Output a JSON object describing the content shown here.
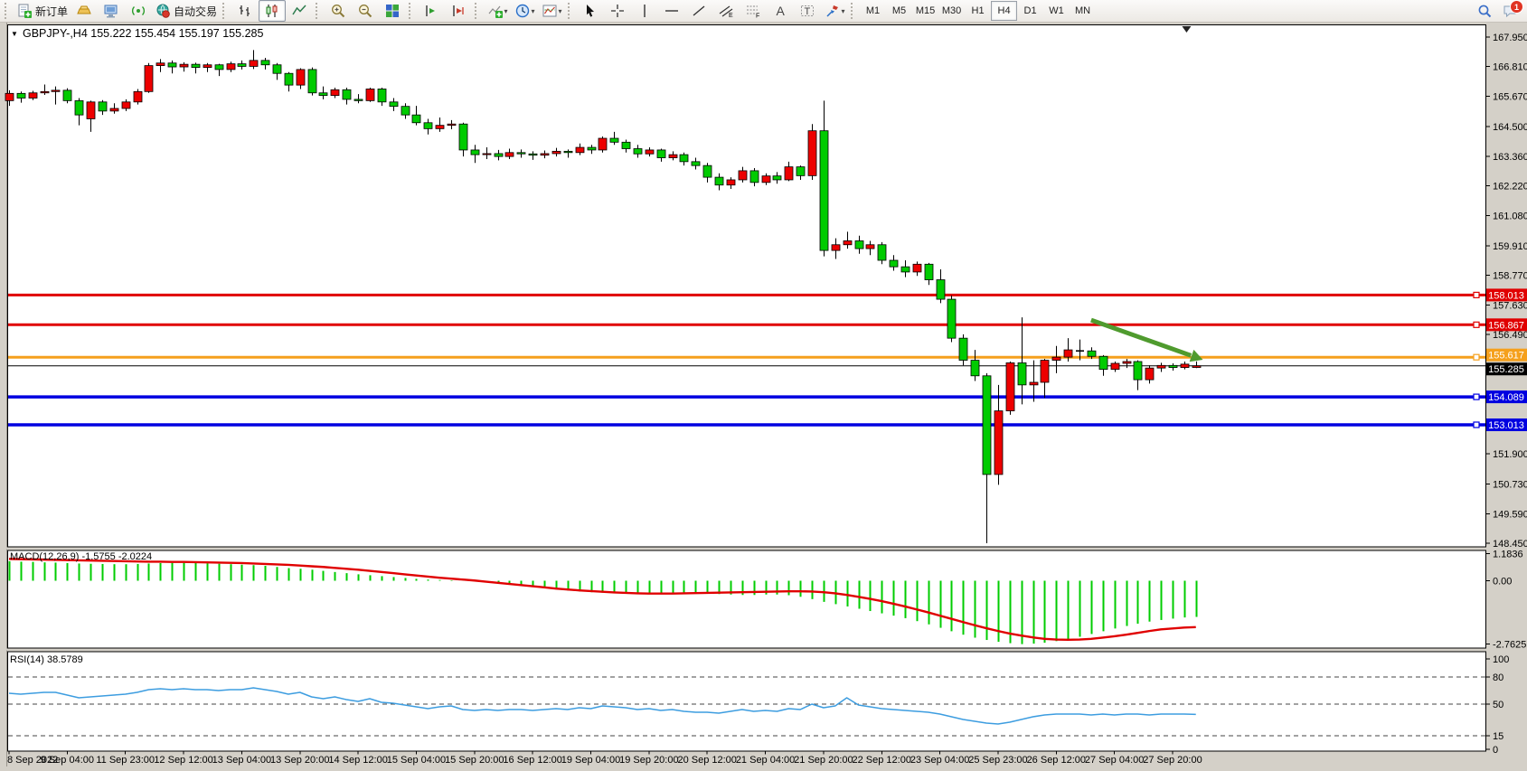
{
  "app": {
    "name": "MetaTrader terminal"
  },
  "toolbar": {
    "groups": [
      {
        "name": "trade",
        "items": [
          {
            "name": "new-order-button",
            "icon": "new-order-icon",
            "label": "新订单"
          },
          {
            "name": "deposit-button",
            "icon": "deposit-icon"
          },
          {
            "name": "market-watch-button",
            "icon": "market-watch-icon"
          },
          {
            "name": "signals-button",
            "icon": "signal-icon"
          },
          {
            "name": "autotrade-button",
            "icon": "autotrade-icon",
            "label": "自动交易"
          }
        ]
      },
      {
        "name": "chart-type",
        "items": [
          {
            "name": "bar-chart-button",
            "icon": "bar-chart-icon"
          },
          {
            "name": "candlestick-chart-button",
            "icon": "candlestick-chart-icon",
            "selected": true
          },
          {
            "name": "line-chart-button",
            "icon": "line-chart-icon"
          }
        ]
      },
      {
        "name": "zoom",
        "items": [
          {
            "name": "zoom-in-button",
            "icon": "zoom-in-icon"
          },
          {
            "name": "zoom-out-button",
            "icon": "zoom-out-icon"
          },
          {
            "name": "tile-windows-button",
            "icon": "tile-windows-icon"
          }
        ]
      },
      {
        "name": "shift",
        "items": [
          {
            "name": "auto-scroll-button",
            "icon": "auto-scroll-icon"
          },
          {
            "name": "chart-shift-button",
            "icon": "chart-shift-icon"
          }
        ]
      },
      {
        "name": "chart-tools",
        "items": [
          {
            "name": "indicators-button",
            "icon": "indicators-icon",
            "caret": true
          },
          {
            "name": "periods-button",
            "icon": "clock-icon",
            "caret": true
          },
          {
            "name": "templates-button",
            "icon": "template-icon",
            "caret": true
          }
        ]
      },
      {
        "name": "drawing",
        "items": [
          {
            "name": "cursor-button",
            "icon": "cursor-icon"
          },
          {
            "name": "crosshair-button",
            "icon": "crosshair-icon"
          },
          {
            "name": "vertical-line-button",
            "icon": "vline-icon"
          },
          {
            "name": "horizontal-line-button",
            "icon": "hline-icon"
          },
          {
            "name": "trendline-button",
            "icon": "trendline-icon"
          },
          {
            "name": "channel-button",
            "icon": "channel-icon"
          },
          {
            "name": "fibonacci-button",
            "icon": "fibonacci-icon"
          },
          {
            "name": "text-button",
            "icon": "text-icon"
          },
          {
            "name": "text-label-button",
            "icon": "label-icon"
          },
          {
            "name": "arrows-button",
            "icon": "arrows-icon",
            "caret": true
          }
        ]
      },
      {
        "name": "timeframes",
        "items": [
          {
            "name": "tf-m1",
            "label": "M1"
          },
          {
            "name": "tf-m5",
            "label": "M5"
          },
          {
            "name": "tf-m15",
            "label": "M15"
          },
          {
            "name": "tf-m30",
            "label": "M30"
          },
          {
            "name": "tf-h1",
            "label": "H1"
          },
          {
            "name": "tf-h4",
            "label": "H4",
            "selected": true
          },
          {
            "name": "tf-d1",
            "label": "D1"
          },
          {
            "name": "tf-w1",
            "label": "W1"
          },
          {
            "name": "tf-mn",
            "label": "MN"
          }
        ]
      }
    ],
    "right": {
      "search_icon": "search-icon",
      "chat_icon": "chat-icon",
      "chat_badge": "1"
    }
  },
  "chart": {
    "title": "GBPJPY-,H4  155.222 155.454 155.197 155.285",
    "symbol": "GBPJPY-",
    "period": "H4",
    "ohlc": {
      "open": "155.222",
      "high": "155.454",
      "low": "155.197",
      "close": "155.285"
    }
  },
  "indicators": {
    "macd_label": "MACD(12,26,9) -1.5755 -2.0224",
    "rsi_label": "RSI(14) 38.5789"
  },
  "chart_data": {
    "type": "candlestick",
    "title": "GBPJPY- H4",
    "bull_color": "#ED0000",
    "bear_color": "#00CB00",
    "wick_color": "#000000",
    "candles_ohlc": [
      [
        165.5,
        165.9,
        165.3,
        165.78
      ],
      [
        165.78,
        165.85,
        165.42,
        165.6
      ],
      [
        165.6,
        165.88,
        165.52,
        165.8
      ],
      [
        165.8,
        166.12,
        165.72,
        165.85
      ],
      [
        165.85,
        166.05,
        165.35,
        165.9
      ],
      [
        165.9,
        165.98,
        165.4,
        165.5
      ],
      [
        165.5,
        165.6,
        164.55,
        164.95
      ],
      [
        164.8,
        165.5,
        164.3,
        165.45
      ],
      [
        165.45,
        165.52,
        164.95,
        165.1
      ],
      [
        165.1,
        165.4,
        165.0,
        165.2
      ],
      [
        165.2,
        165.55,
        165.1,
        165.45
      ],
      [
        165.45,
        165.95,
        165.35,
        165.85
      ],
      [
        165.85,
        166.95,
        165.8,
        166.85
      ],
      [
        166.85,
        167.1,
        166.6,
        166.95
      ],
      [
        166.95,
        167.05,
        166.55,
        166.8
      ],
      [
        166.8,
        166.98,
        166.62,
        166.9
      ],
      [
        166.9,
        166.96,
        166.55,
        166.78
      ],
      [
        166.78,
        166.95,
        166.6,
        166.88
      ],
      [
        166.88,
        166.92,
        166.45,
        166.7
      ],
      [
        166.7,
        167.0,
        166.6,
        166.92
      ],
      [
        166.92,
        167.05,
        166.7,
        166.82
      ],
      [
        166.82,
        167.45,
        166.72,
        167.05
      ],
      [
        167.05,
        167.15,
        166.7,
        166.88
      ],
      [
        166.88,
        166.95,
        166.3,
        166.55
      ],
      [
        166.55,
        166.6,
        165.85,
        166.1
      ],
      [
        166.1,
        166.75,
        165.95,
        166.7
      ],
      [
        166.7,
        166.78,
        165.7,
        165.8
      ],
      [
        165.8,
        166.05,
        165.55,
        165.7
      ],
      [
        165.7,
        166.0,
        165.6,
        165.92
      ],
      [
        165.92,
        166.0,
        165.35,
        165.55
      ],
      [
        165.55,
        165.75,
        165.4,
        165.5
      ],
      [
        165.5,
        166.0,
        165.45,
        165.95
      ],
      [
        165.95,
        166.0,
        165.3,
        165.45
      ],
      [
        165.45,
        165.6,
        165.1,
        165.28
      ],
      [
        165.28,
        165.4,
        164.8,
        164.95
      ],
      [
        164.95,
        165.3,
        164.55,
        164.65
      ],
      [
        164.65,
        164.8,
        164.2,
        164.42
      ],
      [
        164.42,
        164.85,
        164.3,
        164.55
      ],
      [
        164.55,
        164.75,
        164.4,
        164.6
      ],
      [
        164.6,
        164.65,
        163.35,
        163.6
      ],
      [
        163.6,
        163.8,
        163.1,
        163.42
      ],
      [
        163.42,
        163.7,
        163.25,
        163.46
      ],
      [
        163.46,
        163.6,
        163.2,
        163.35
      ],
      [
        163.35,
        163.65,
        163.25,
        163.5
      ],
      [
        163.5,
        163.62,
        163.3,
        163.45
      ],
      [
        163.45,
        163.55,
        163.22,
        163.4
      ],
      [
        163.4,
        163.58,
        163.28,
        163.46
      ],
      [
        163.46,
        163.68,
        163.35,
        163.55
      ],
      [
        163.55,
        163.62,
        163.3,
        163.5
      ],
      [
        163.5,
        163.85,
        163.4,
        163.7
      ],
      [
        163.7,
        163.8,
        163.45,
        163.6
      ],
      [
        163.6,
        164.12,
        163.5,
        164.05
      ],
      [
        164.05,
        164.3,
        163.8,
        163.9
      ],
      [
        163.9,
        164.0,
        163.5,
        163.65
      ],
      [
        163.65,
        163.8,
        163.3,
        163.45
      ],
      [
        163.45,
        163.7,
        163.35,
        163.6
      ],
      [
        163.6,
        163.65,
        163.15,
        163.3
      ],
      [
        163.3,
        163.55,
        163.2,
        163.42
      ],
      [
        163.42,
        163.5,
        163.0,
        163.15
      ],
      [
        163.15,
        163.3,
        162.85,
        163.0
      ],
      [
        163.0,
        163.1,
        162.35,
        162.55
      ],
      [
        162.55,
        162.7,
        162.05,
        162.25
      ],
      [
        162.25,
        162.55,
        162.1,
        162.45
      ],
      [
        162.45,
        162.95,
        162.35,
        162.8
      ],
      [
        162.8,
        162.9,
        162.2,
        162.35
      ],
      [
        162.35,
        162.7,
        162.25,
        162.6
      ],
      [
        162.6,
        162.75,
        162.3,
        162.45
      ],
      [
        162.45,
        163.15,
        162.4,
        162.95
      ],
      [
        162.95,
        163.0,
        162.45,
        162.61
      ],
      [
        162.61,
        164.6,
        162.45,
        164.34
      ],
      [
        164.34,
        165.5,
        159.5,
        159.73
      ],
      [
        159.73,
        160.2,
        159.4,
        159.95
      ],
      [
        159.95,
        160.45,
        159.8,
        160.1
      ],
      [
        160.1,
        160.3,
        159.6,
        159.8
      ],
      [
        159.8,
        160.1,
        159.55,
        159.95
      ],
      [
        159.95,
        160.05,
        159.2,
        159.35
      ],
      [
        159.35,
        159.55,
        158.95,
        159.1
      ],
      [
        159.1,
        159.35,
        158.7,
        158.9
      ],
      [
        158.9,
        159.3,
        158.75,
        159.2
      ],
      [
        159.2,
        159.25,
        158.4,
        158.6
      ],
      [
        158.6,
        159.0,
        157.7,
        157.85
      ],
      [
        157.85,
        158.0,
        156.2,
        156.35
      ],
      [
        156.35,
        156.5,
        155.3,
        155.5
      ],
      [
        155.5,
        155.9,
        154.7,
        154.9
      ],
      [
        154.9,
        155.0,
        148.45,
        151.1
      ],
      [
        151.1,
        154.55,
        150.7,
        153.55
      ],
      [
        153.55,
        155.45,
        153.4,
        155.4
      ],
      [
        155.4,
        157.15,
        153.8,
        154.55
      ],
      [
        154.55,
        155.5,
        153.9,
        154.65
      ],
      [
        154.65,
        155.55,
        154.05,
        155.5
      ],
      [
        155.5,
        156.05,
        155.0,
        155.62
      ],
      [
        155.62,
        156.35,
        155.45,
        155.9
      ],
      [
        155.88,
        156.3,
        155.5,
        155.86
      ],
      [
        155.86,
        156.0,
        155.55,
        155.65
      ],
      [
        155.65,
        155.7,
        154.9,
        155.15
      ],
      [
        155.15,
        155.45,
        155.05,
        155.38
      ],
      [
        155.38,
        155.55,
        155.2,
        155.45
      ],
      [
        155.45,
        155.5,
        154.35,
        154.75
      ],
      [
        154.75,
        155.3,
        154.6,
        155.2
      ],
      [
        155.2,
        155.4,
        155.05,
        155.3
      ],
      [
        155.3,
        155.38,
        155.1,
        155.22
      ],
      [
        155.22,
        155.45,
        155.15,
        155.35
      ],
      [
        155.222,
        155.454,
        155.197,
        155.285
      ]
    ],
    "time_labels": [
      "8 Sep 2022",
      "9 Sep 04:00",
      "11 Sep 23:00",
      "12 Sep 12:00",
      "13 Sep 04:00",
      "13 Sep 20:00",
      "14 Sep 12:00",
      "15 Sep 04:00",
      "15 Sep 20:00",
      "16 Sep 12:00",
      "19 Sep 04:00",
      "19 Sep 20:00",
      "20 Sep 12:00",
      "21 Sep 04:00",
      "21 Sep 20:00",
      "22 Sep 12:00",
      "23 Sep 04:00",
      "25 Sep 23:00",
      "26 Sep 12:00",
      "27 Sep 04:00",
      "27 Sep 20:00"
    ],
    "label_every_n_candles": 5,
    "price_ticks": [
      "167.950",
      "166.810",
      "165.670",
      "164.500",
      "163.360",
      "162.220",
      "161.080",
      "159.910",
      "158.770",
      "157.630",
      "156.490",
      "151.900",
      "150.730",
      "149.590",
      "148.450"
    ],
    "hlines": [
      {
        "price": 158.013,
        "label": "158.013",
        "color": "#E00000",
        "width": 3,
        "marker": true
      },
      {
        "price": 156.867,
        "label": "156.867",
        "color": "#E00000",
        "width": 3,
        "marker": true
      },
      {
        "price": 155.617,
        "label": "155.617",
        "color": "#F5A01C",
        "width": 3,
        "marker": true
      },
      {
        "price": 155.285,
        "label": "155.285",
        "color": "#000000",
        "width": 1,
        "marker": false
      },
      {
        "price": 154.089,
        "label": "154.089",
        "color": "#0000E0",
        "width": 3.5,
        "marker": true
      },
      {
        "price": 153.013,
        "label": "153.013",
        "color": "#0000E0",
        "width": 3.5,
        "marker": true
      }
    ],
    "arrow": {
      "x1_index": 93.0,
      "price1": 157.05,
      "x2_index": 102.6,
      "price2": 155.52,
      "color": "#4F9B2E"
    },
    "shift_marker_index": 101.2,
    "macd": {
      "label": "MACD(12,26,9) -1.5755 -2.0224",
      "histogram_color": "#00CC00",
      "signal_color": "#E00000",
      "axis_ticks": [
        {
          "text": "1.1836",
          "v": 1.1836
        },
        {
          "text": "0.00",
          "v": 0
        },
        {
          "text": "-2.7625",
          "v": -2.7625
        }
      ],
      "histogram": [
        0.85,
        0.83,
        0.82,
        0.8,
        0.79,
        0.77,
        0.75,
        0.74,
        0.73,
        0.72,
        0.72,
        0.73,
        0.75,
        0.77,
        0.78,
        0.78,
        0.77,
        0.76,
        0.74,
        0.72,
        0.7,
        0.68,
        0.65,
        0.6,
        0.55,
        0.52,
        0.48,
        0.43,
        0.38,
        0.33,
        0.28,
        0.24,
        0.2,
        0.16,
        0.12,
        0.08,
        0.05,
        0.03,
        0.02,
        0.01,
        -0.02,
        -0.06,
        -0.1,
        -0.15,
        -0.2,
        -0.26,
        -0.32,
        -0.38,
        -0.43,
        -0.47,
        -0.5,
        -0.52,
        -0.54,
        -0.55,
        -0.55,
        -0.54,
        -0.53,
        -0.52,
        -0.52,
        -0.53,
        -0.55,
        -0.58,
        -0.6,
        -0.62,
        -0.62,
        -0.6,
        -0.6,
        -0.63,
        -0.7,
        -0.8,
        -0.92,
        -1.02,
        -1.12,
        -1.22,
        -1.32,
        -1.42,
        -1.52,
        -1.63,
        -1.76,
        -1.9,
        -2.05,
        -2.2,
        -2.35,
        -2.48,
        -2.58,
        -2.66,
        -2.72,
        -2.76,
        -2.74,
        -2.7,
        -2.63,
        -2.54,
        -2.44,
        -2.32,
        -2.2,
        -2.08,
        -1.97,
        -1.87,
        -1.78,
        -1.71,
        -1.65,
        -1.6,
        -1.576
      ],
      "signal": [
        0.95,
        0.94,
        0.93,
        0.92,
        0.91,
        0.9,
        0.89,
        0.88,
        0.87,
        0.86,
        0.85,
        0.84,
        0.83,
        0.83,
        0.82,
        0.82,
        0.81,
        0.8,
        0.79,
        0.78,
        0.77,
        0.75,
        0.73,
        0.71,
        0.69,
        0.66,
        0.63,
        0.6,
        0.56,
        0.52,
        0.48,
        0.43,
        0.38,
        0.33,
        0.28,
        0.23,
        0.18,
        0.13,
        0.09,
        0.05,
        0.01,
        -0.04,
        -0.09,
        -0.14,
        -0.19,
        -0.24,
        -0.29,
        -0.34,
        -0.38,
        -0.42,
        -0.45,
        -0.48,
        -0.51,
        -0.53,
        -0.55,
        -0.56,
        -0.56,
        -0.56,
        -0.55,
        -0.54,
        -0.53,
        -0.52,
        -0.51,
        -0.5,
        -0.49,
        -0.48,
        -0.47,
        -0.46,
        -0.46,
        -0.47,
        -0.5,
        -0.55,
        -0.62,
        -0.7,
        -0.79,
        -0.89,
        -1.0,
        -1.12,
        -1.25,
        -1.38,
        -1.52,
        -1.66,
        -1.8,
        -1.94,
        -2.07,
        -2.19,
        -2.3,
        -2.39,
        -2.47,
        -2.53,
        -2.56,
        -2.57,
        -2.56,
        -2.53,
        -2.48,
        -2.42,
        -2.35,
        -2.27,
        -2.19,
        -2.12,
        -2.08,
        -2.04,
        -2.022
      ]
    },
    "rsi": {
      "label": "RSI(14) 38.5789",
      "line_color": "#3D9DE0",
      "levels": [
        80,
        50,
        15
      ],
      "axis_ticks": [
        {
          "text": "100",
          "v": 100
        },
        {
          "text": "80",
          "v": 80
        },
        {
          "text": "50",
          "v": 50
        },
        {
          "text": "15",
          "v": 15
        },
        {
          "text": "0",
          "v": 0
        }
      ],
      "values": [
        62,
        61,
        62,
        63,
        63,
        60,
        57,
        58,
        59,
        60,
        61,
        63,
        66,
        67,
        66,
        67,
        66,
        66,
        65,
        66,
        66,
        68,
        66,
        64,
        61,
        63,
        58,
        56,
        58,
        55,
        53,
        56,
        52,
        51,
        49,
        47,
        45,
        47,
        48,
        44,
        43,
        44,
        43,
        44,
        44,
        43,
        44,
        45,
        44,
        46,
        45,
        48,
        47,
        46,
        44,
        45,
        43,
        44,
        42,
        41,
        41,
        40,
        42,
        44,
        42,
        43,
        42,
        45,
        44,
        50,
        46,
        48,
        57,
        49,
        47,
        45,
        44,
        43,
        42,
        41,
        39,
        36,
        33,
        31,
        29,
        28,
        30,
        33,
        36,
        38,
        39,
        39,
        39,
        38,
        39,
        38,
        39,
        39,
        38,
        39,
        39,
        39,
        38.58
      ]
    }
  }
}
